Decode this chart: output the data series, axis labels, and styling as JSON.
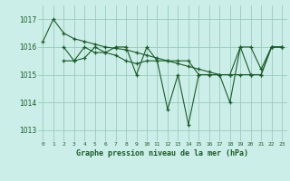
{
  "bg_color": "#cceee8",
  "grid_color": "#99ccbb",
  "line_color": "#1a5c28",
  "title": "Graphe pression niveau de la mer (hPa)",
  "xlim": [
    -0.5,
    23.5
  ],
  "ylim": [
    1012.6,
    1017.5
  ],
  "yticks": [
    1013,
    1014,
    1015,
    1016,
    1017
  ],
  "xtick_labels": [
    "0",
    "1",
    "2",
    "3",
    "4",
    "5",
    "6",
    "7",
    "8",
    "9",
    "10",
    "11",
    "12",
    "13",
    "14",
    "15",
    "16",
    "17",
    "18",
    "19",
    "20",
    "21",
    "22",
    "23"
  ],
  "series1_x": [
    0,
    1,
    2,
    3,
    4,
    5,
    6,
    7,
    8,
    9,
    10,
    11,
    12,
    13,
    14,
    15,
    16,
    17,
    18,
    19,
    20,
    21,
    22,
    23
  ],
  "series1_y": [
    1016.2,
    1017.0,
    1016.5,
    1016.3,
    1016.2,
    1016.1,
    1016.0,
    1015.95,
    1015.9,
    1015.8,
    1015.7,
    1015.6,
    1015.5,
    1015.4,
    1015.3,
    1015.2,
    1015.1,
    1015.0,
    1015.0,
    1015.0,
    1015.0,
    1015.0,
    1016.0,
    1016.0
  ],
  "series2_x": [
    2,
    3,
    4,
    5,
    6,
    7,
    8,
    9,
    10,
    11,
    12,
    13,
    14,
    15,
    16,
    17,
    18,
    19,
    20,
    21,
    22,
    23
  ],
  "series2_y": [
    1016.0,
    1015.5,
    1015.6,
    1016.0,
    1015.8,
    1016.0,
    1016.0,
    1015.0,
    1016.0,
    1015.5,
    1013.75,
    1015.0,
    1013.2,
    1015.0,
    1015.0,
    1015.0,
    1014.0,
    1016.0,
    1016.0,
    1015.2,
    1016.0,
    1016.0
  ],
  "series3_x": [
    2,
    3,
    4,
    5,
    6,
    7,
    8,
    9,
    10,
    11,
    12,
    13,
    14,
    15,
    16,
    17,
    18,
    19,
    20,
    21,
    22,
    23
  ],
  "series3_y": [
    1015.5,
    1015.5,
    1016.0,
    1015.8,
    1015.8,
    1015.7,
    1015.5,
    1015.4,
    1015.5,
    1015.5,
    1015.5,
    1015.5,
    1015.5,
    1015.0,
    1015.0,
    1015.0,
    1015.0,
    1016.0,
    1015.0,
    1015.0,
    1016.0,
    1016.0
  ]
}
